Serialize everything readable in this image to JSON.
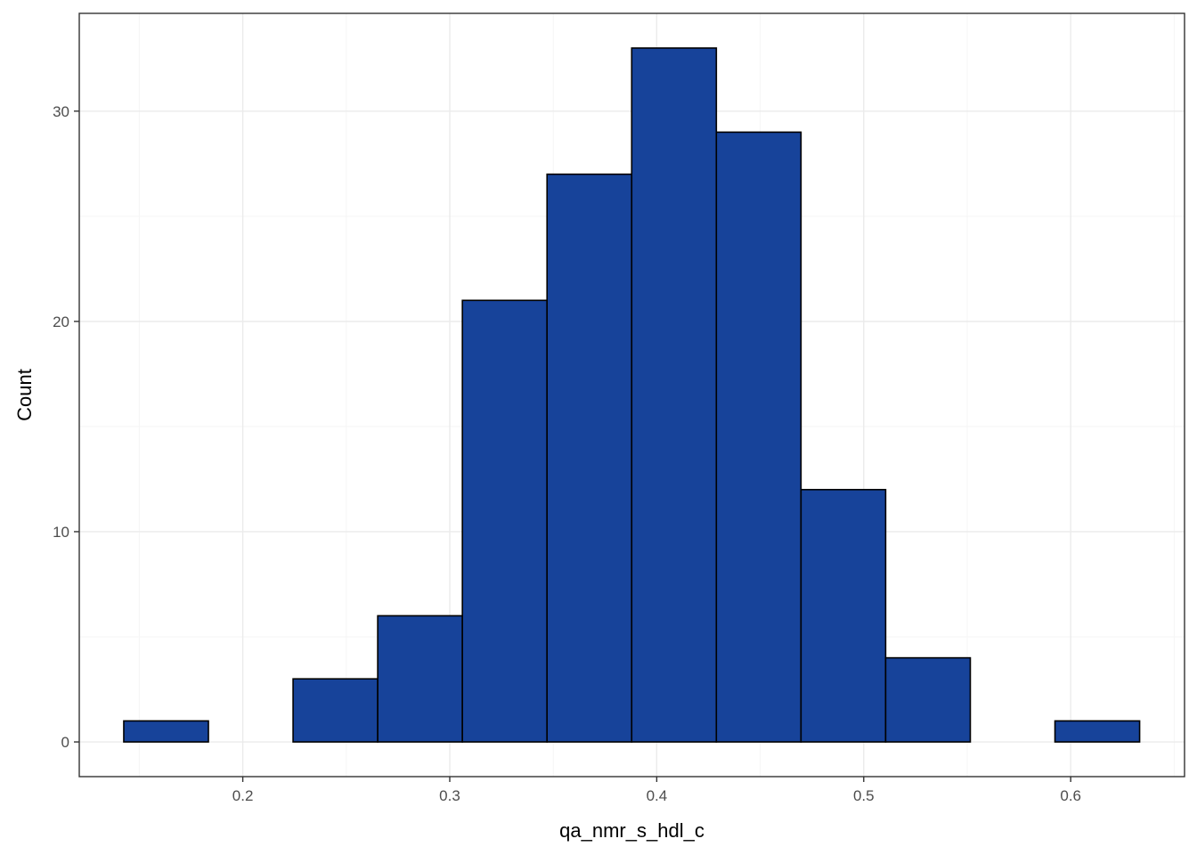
{
  "chart_data": {
    "type": "histogram",
    "title": "",
    "xlabel": "qa_nmr_s_hdl_c",
    "ylabel": "Count",
    "bin_edges": [
      0.1425,
      0.1834,
      0.2243,
      0.2652,
      0.3061,
      0.347,
      0.3879,
      0.4288,
      0.4697,
      0.5106,
      0.5515,
      0.5924,
      0.6333
    ],
    "counts": [
      1,
      0,
      3,
      6,
      21,
      27,
      33,
      29,
      12,
      4,
      0,
      1
    ],
    "xlim": [
      0.121,
      0.655
    ],
    "ylim": [
      -1.65,
      34.65
    ],
    "x_ticks": [
      0.2,
      0.3,
      0.4,
      0.5,
      0.6
    ],
    "x_tick_labels": [
      "0.2",
      "0.3",
      "0.4",
      "0.5",
      "0.6"
    ],
    "y_ticks": [
      0,
      10,
      20,
      30
    ],
    "y_tick_labels": [
      "0",
      "10",
      "20",
      "30"
    ],
    "grid": true,
    "legend": "none",
    "colors": {
      "bar_fill": "#17439A",
      "bar_outline": "#000000",
      "grid_major": "#EBEBEB",
      "grid_minor": "#F5F5F5",
      "panel_border": "#333333",
      "tick_text": "#4D4D4D",
      "axis_title": "#000000"
    }
  }
}
